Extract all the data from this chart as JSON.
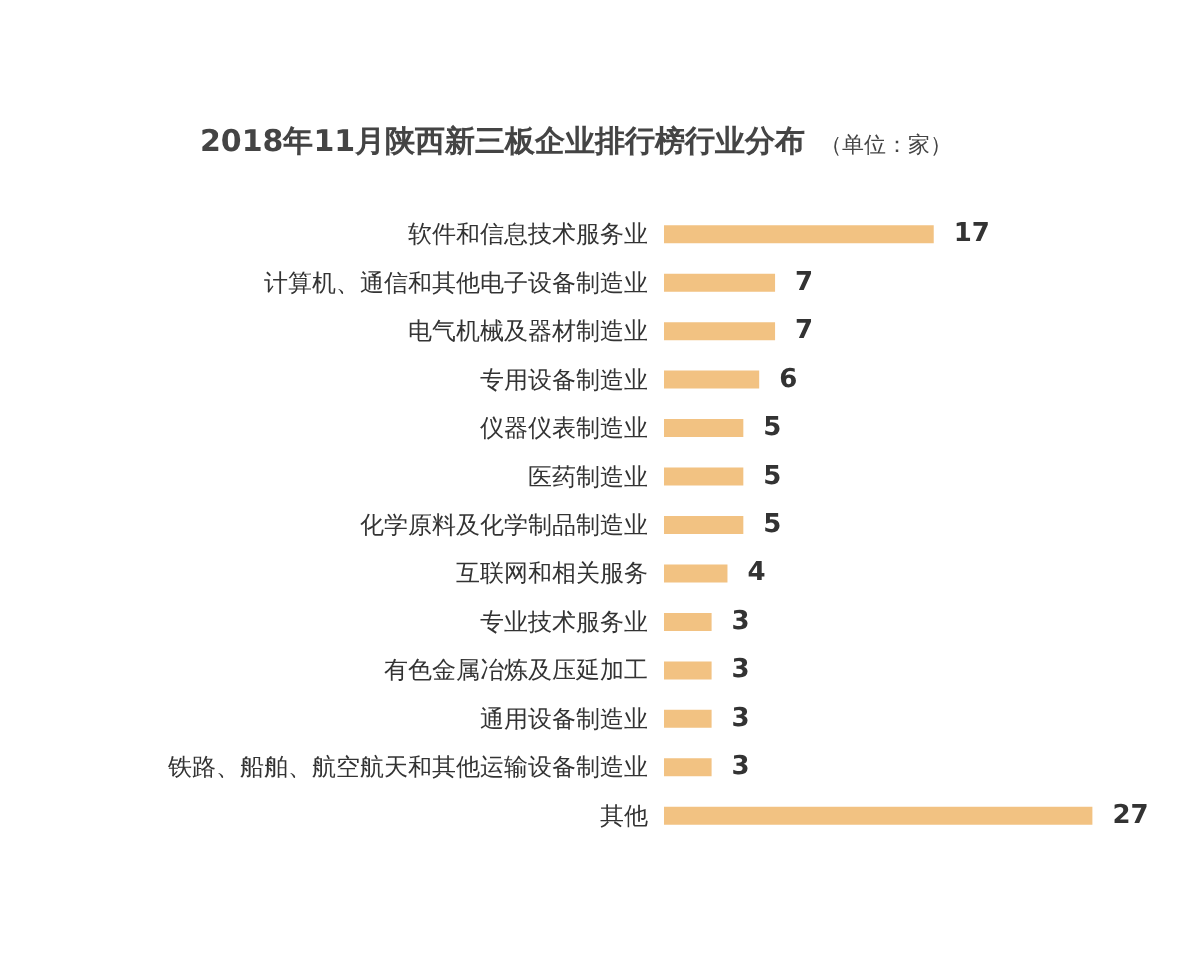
{
  "chart_data": {
    "type": "bar",
    "orientation": "horizontal",
    "title": "2018年11月陕西新三板企业排行榜行业分布",
    "subtitle": "（单位：家）",
    "categories": [
      "软件和信息技术服务业",
      "计算机、通信和其他电子设备制造业",
      "电气机械及器材制造业",
      "专用设备制造业",
      "仪器仪表制造业",
      "医药制造业",
      "化学原料及化学制品制造业",
      "互联网和相关服务",
      "专业技术服务业",
      "有色金属冶炼及压延加工",
      "通用设备制造业",
      "铁路、船舶、航空航天和其他运输设备制造业",
      "其他"
    ],
    "values": [
      17,
      7,
      7,
      6,
      5,
      5,
      5,
      4,
      3,
      3,
      3,
      3,
      27
    ],
    "color": "#f2c282",
    "data_labels": true
  }
}
